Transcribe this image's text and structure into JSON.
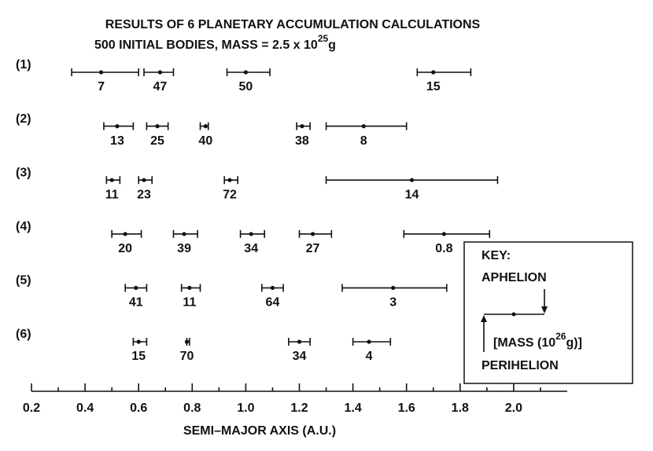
{
  "chart_data": {
    "type": "range",
    "title": "RESULTS OF 6 PLANETARY ACCUMULATION CALCULATIONS",
    "subtitle": "500 INITIAL BODIES, MASS = 2.5 x 10",
    "subtitle_exponent": "25",
    "subtitle_unit": "g",
    "xlabel": "SEMI–MAJOR AXIS (A.U.)",
    "xlim": [
      0.2,
      2.2
    ],
    "xticks": [
      0.2,
      0.4,
      0.6,
      0.8,
      {
        "value": 1.0,
        "label": "1.0"
      },
      1.2,
      1.4,
      1.6,
      1.8,
      {
        "value": 2.0,
        "label": "2.0"
      }
    ],
    "xminorticks": [
      0.3,
      0.5,
      0.7,
      0.9,
      1.1,
      1.3,
      1.5,
      1.7,
      1.9,
      2.1
    ],
    "color": "#111111",
    "rows": [
      {
        "name": "(1)",
        "bodies": [
          {
            "perihelion": 0.35,
            "a": 0.46,
            "aphelion": 0.6,
            "mass": 7
          },
          {
            "perihelion": 0.62,
            "a": 0.68,
            "aphelion": 0.73,
            "mass": 47
          },
          {
            "perihelion": 0.93,
            "a": 1.0,
            "aphelion": 1.09,
            "mass": 50
          },
          {
            "perihelion": 1.64,
            "a": 1.7,
            "aphelion": 1.84,
            "mass": 15
          }
        ]
      },
      {
        "name": "(2)",
        "bodies": [
          {
            "perihelion": 0.47,
            "a": 0.52,
            "aphelion": 0.58,
            "mass": 13
          },
          {
            "perihelion": 0.63,
            "a": 0.67,
            "aphelion": 0.71,
            "mass": 25
          },
          {
            "perihelion": 0.83,
            "a": 0.85,
            "aphelion": 0.86,
            "mass": 40
          },
          {
            "perihelion": 1.19,
            "a": 1.21,
            "aphelion": 1.24,
            "mass": 38
          },
          {
            "perihelion": 1.3,
            "a": 1.44,
            "aphelion": 1.6,
            "mass": 8
          }
        ]
      },
      {
        "name": "(3)",
        "bodies": [
          {
            "perihelion": 0.48,
            "a": 0.5,
            "aphelion": 0.53,
            "mass": 11
          },
          {
            "perihelion": 0.6,
            "a": 0.62,
            "aphelion": 0.65,
            "mass": 23
          },
          {
            "perihelion": 0.92,
            "a": 0.94,
            "aphelion": 0.97,
            "mass": 72
          },
          {
            "perihelion": 1.3,
            "a": 1.62,
            "aphelion": 1.94,
            "mass": 14
          }
        ]
      },
      {
        "name": "(4)",
        "bodies": [
          {
            "perihelion": 0.5,
            "a": 0.55,
            "aphelion": 0.61,
            "mass": 20
          },
          {
            "perihelion": 0.73,
            "a": 0.77,
            "aphelion": 0.82,
            "mass": 39
          },
          {
            "perihelion": 0.98,
            "a": 1.02,
            "aphelion": 1.07,
            "mass": 34
          },
          {
            "perihelion": 1.2,
            "a": 1.25,
            "aphelion": 1.32,
            "mass": 27
          },
          {
            "perihelion": 1.59,
            "a": 1.74,
            "aphelion": 1.91,
            "mass": 0.8
          }
        ]
      },
      {
        "name": "(5)",
        "bodies": [
          {
            "perihelion": 0.55,
            "a": 0.59,
            "aphelion": 0.63,
            "mass": 41
          },
          {
            "perihelion": 0.76,
            "a": 0.79,
            "aphelion": 0.83,
            "mass": 11
          },
          {
            "perihelion": 1.06,
            "a": 1.1,
            "aphelion": 1.14,
            "mass": 64
          },
          {
            "perihelion": 1.36,
            "a": 1.55,
            "aphelion": 1.75,
            "mass": 3
          }
        ]
      },
      {
        "name": "(6)",
        "bodies": [
          {
            "perihelion": 0.58,
            "a": 0.6,
            "aphelion": 0.63,
            "mass": 15
          },
          {
            "perihelion": 0.78,
            "a": 0.78,
            "aphelion": 0.79,
            "mass": 70
          },
          {
            "perihelion": 1.16,
            "a": 1.2,
            "aphelion": 1.24,
            "mass": 34
          },
          {
            "perihelion": 1.4,
            "a": 1.46,
            "aphelion": 1.54,
            "mass": 4
          }
        ]
      }
    ],
    "key": {
      "title": "KEY:",
      "aphelion": "APHELION",
      "mass": "[MASS (10",
      "mass_exponent": "26",
      "mass_unit": "g)]",
      "perihelion": "PERIHELION"
    }
  }
}
